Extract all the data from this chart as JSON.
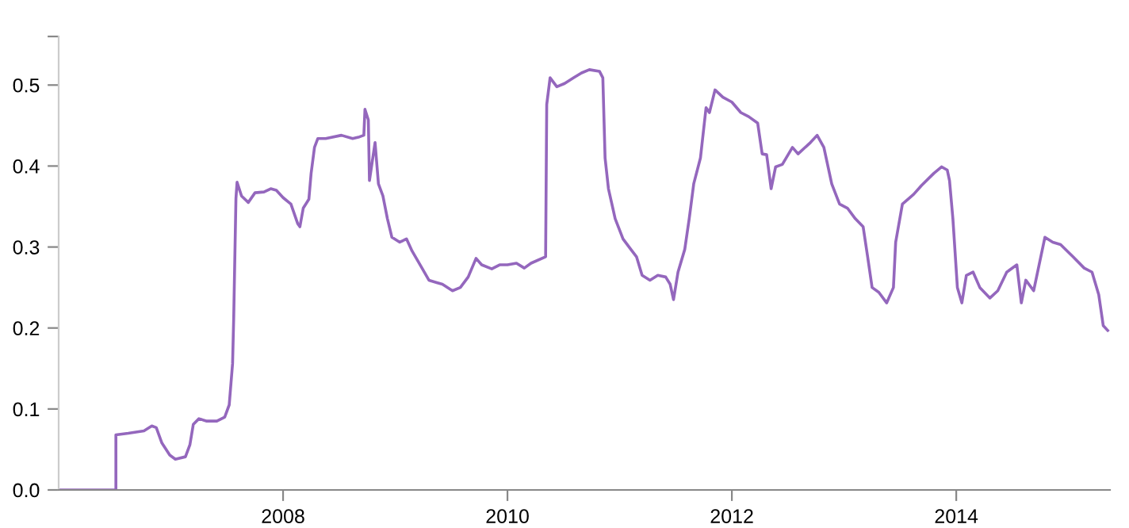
{
  "chart_data": {
    "type": "line",
    "xlim": [
      2006.0,
      2015.37
    ],
    "xticks": [
      2008,
      2010,
      2012,
      2014
    ],
    "ylim": [
      0,
      0.56
    ],
    "yticks": [
      {
        "value": 0,
        "label": "0.0"
      },
      0.1,
      0.2,
      0.3,
      0.4,
      0.5,
      {
        "value": 0.56,
        "label": null
      }
    ],
    "grid": false,
    "legend": false,
    "marker": "none",
    "line_style": "solid",
    "series": [
      {
        "color": "#9467bd",
        "x": [
          2006.01,
          2006.51,
          2006.51,
          2006.62,
          2006.76,
          2006.83,
          2006.87,
          2006.92,
          2006.99,
          2007.04,
          2007.13,
          2007.17,
          2007.2,
          2007.25,
          2007.32,
          2007.41,
          2007.48,
          2007.52,
          2007.55,
          2007.56,
          2007.58,
          2007.59,
          2007.63,
          2007.69,
          2007.75,
          2007.83,
          2007.89,
          2007.94,
          2008.0,
          2008.07,
          2008.13,
          2008.15,
          2008.18,
          2008.23,
          2008.25,
          2008.28,
          2008.31,
          2008.38,
          2008.52,
          2008.62,
          2008.68,
          2008.72,
          2008.73,
          2008.76,
          2008.77,
          2008.82,
          2008.85,
          2008.89,
          2008.93,
          2008.97,
          2009.04,
          2009.1,
          2009.15,
          2009.23,
          2009.3,
          2009.37,
          2009.42,
          2009.51,
          2009.58,
          2009.65,
          2009.72,
          2009.77,
          2009.86,
          2009.93,
          2010.0,
          2010.08,
          2010.15,
          2010.21,
          2010.34,
          2010.35,
          2010.38,
          2010.44,
          2010.51,
          2010.59,
          2010.66,
          2010.73,
          2010.82,
          2010.85,
          2010.87,
          2010.9,
          2010.96,
          2011.03,
          2011.1,
          2011.15,
          2011.2,
          2011.27,
          2011.34,
          2011.41,
          2011.45,
          2011.48,
          2011.52,
          2011.58,
          2011.62,
          2011.66,
          2011.72,
          2011.77,
          2011.8,
          2011.85,
          2011.92,
          2012.0,
          2012.08,
          2012.15,
          2012.23,
          2012.27,
          2012.31,
          2012.35,
          2012.39,
          2012.45,
          2012.54,
          2012.59,
          2012.7,
          2012.76,
          2012.82,
          2012.89,
          2012.96,
          2013.03,
          2013.1,
          2013.17,
          2013.21,
          2013.25,
          2013.31,
          2013.38,
          2013.44,
          2013.46,
          2013.52,
          2013.62,
          2013.69,
          2013.8,
          2013.87,
          2013.92,
          2013.94,
          2013.97,
          2014.01,
          2014.05,
          2014.09,
          2014.15,
          2014.21,
          2014.3,
          2014.37,
          2014.45,
          2014.54,
          2014.58,
          2014.62,
          2014.69,
          2014.79,
          2014.86,
          2014.93,
          2015.04,
          2015.14,
          2015.21,
          2015.27,
          2015.31,
          2015.35
        ],
        "values": [
          0,
          0,
          0.068,
          0.07,
          0.073,
          0.079,
          0.077,
          0.058,
          0.043,
          0.038,
          0.041,
          0.056,
          0.081,
          0.088,
          0.085,
          0.085,
          0.09,
          0.105,
          0.156,
          0.212,
          0.36,
          0.38,
          0.363,
          0.355,
          0.367,
          0.368,
          0.372,
          0.37,
          0.361,
          0.353,
          0.329,
          0.325,
          0.348,
          0.359,
          0.391,
          0.423,
          0.434,
          0.434,
          0.438,
          0.434,
          0.436,
          0.438,
          0.47,
          0.457,
          0.382,
          0.429,
          0.378,
          0.363,
          0.335,
          0.312,
          0.306,
          0.31,
          0.295,
          0.276,
          0.259,
          0.256,
          0.254,
          0.246,
          0.25,
          0.263,
          0.286,
          0.278,
          0.273,
          0.278,
          0.278,
          0.28,
          0.274,
          0.28,
          0.288,
          0.476,
          0.509,
          0.498,
          0.502,
          0.509,
          0.515,
          0.519,
          0.517,
          0.509,
          0.41,
          0.372,
          0.335,
          0.31,
          0.297,
          0.288,
          0.265,
          0.259,
          0.265,
          0.263,
          0.254,
          0.235,
          0.269,
          0.297,
          0.335,
          0.378,
          0.41,
          0.472,
          0.466,
          0.494,
          0.485,
          0.479,
          0.466,
          0.461,
          0.453,
          0.415,
          0.414,
          0.372,
          0.399,
          0.402,
          0.423,
          0.415,
          0.429,
          0.438,
          0.423,
          0.378,
          0.353,
          0.348,
          0.335,
          0.325,
          0.288,
          0.25,
          0.244,
          0.231,
          0.25,
          0.306,
          0.353,
          0.365,
          0.376,
          0.391,
          0.399,
          0.395,
          0.382,
          0.335,
          0.25,
          0.231,
          0.265,
          0.269,
          0.25,
          0.237,
          0.246,
          0.269,
          0.278,
          0.231,
          0.259,
          0.246,
          0.312,
          0.306,
          0.303,
          0.288,
          0.274,
          0.269,
          0.241,
          0.203,
          0.197
        ]
      }
    ]
  }
}
